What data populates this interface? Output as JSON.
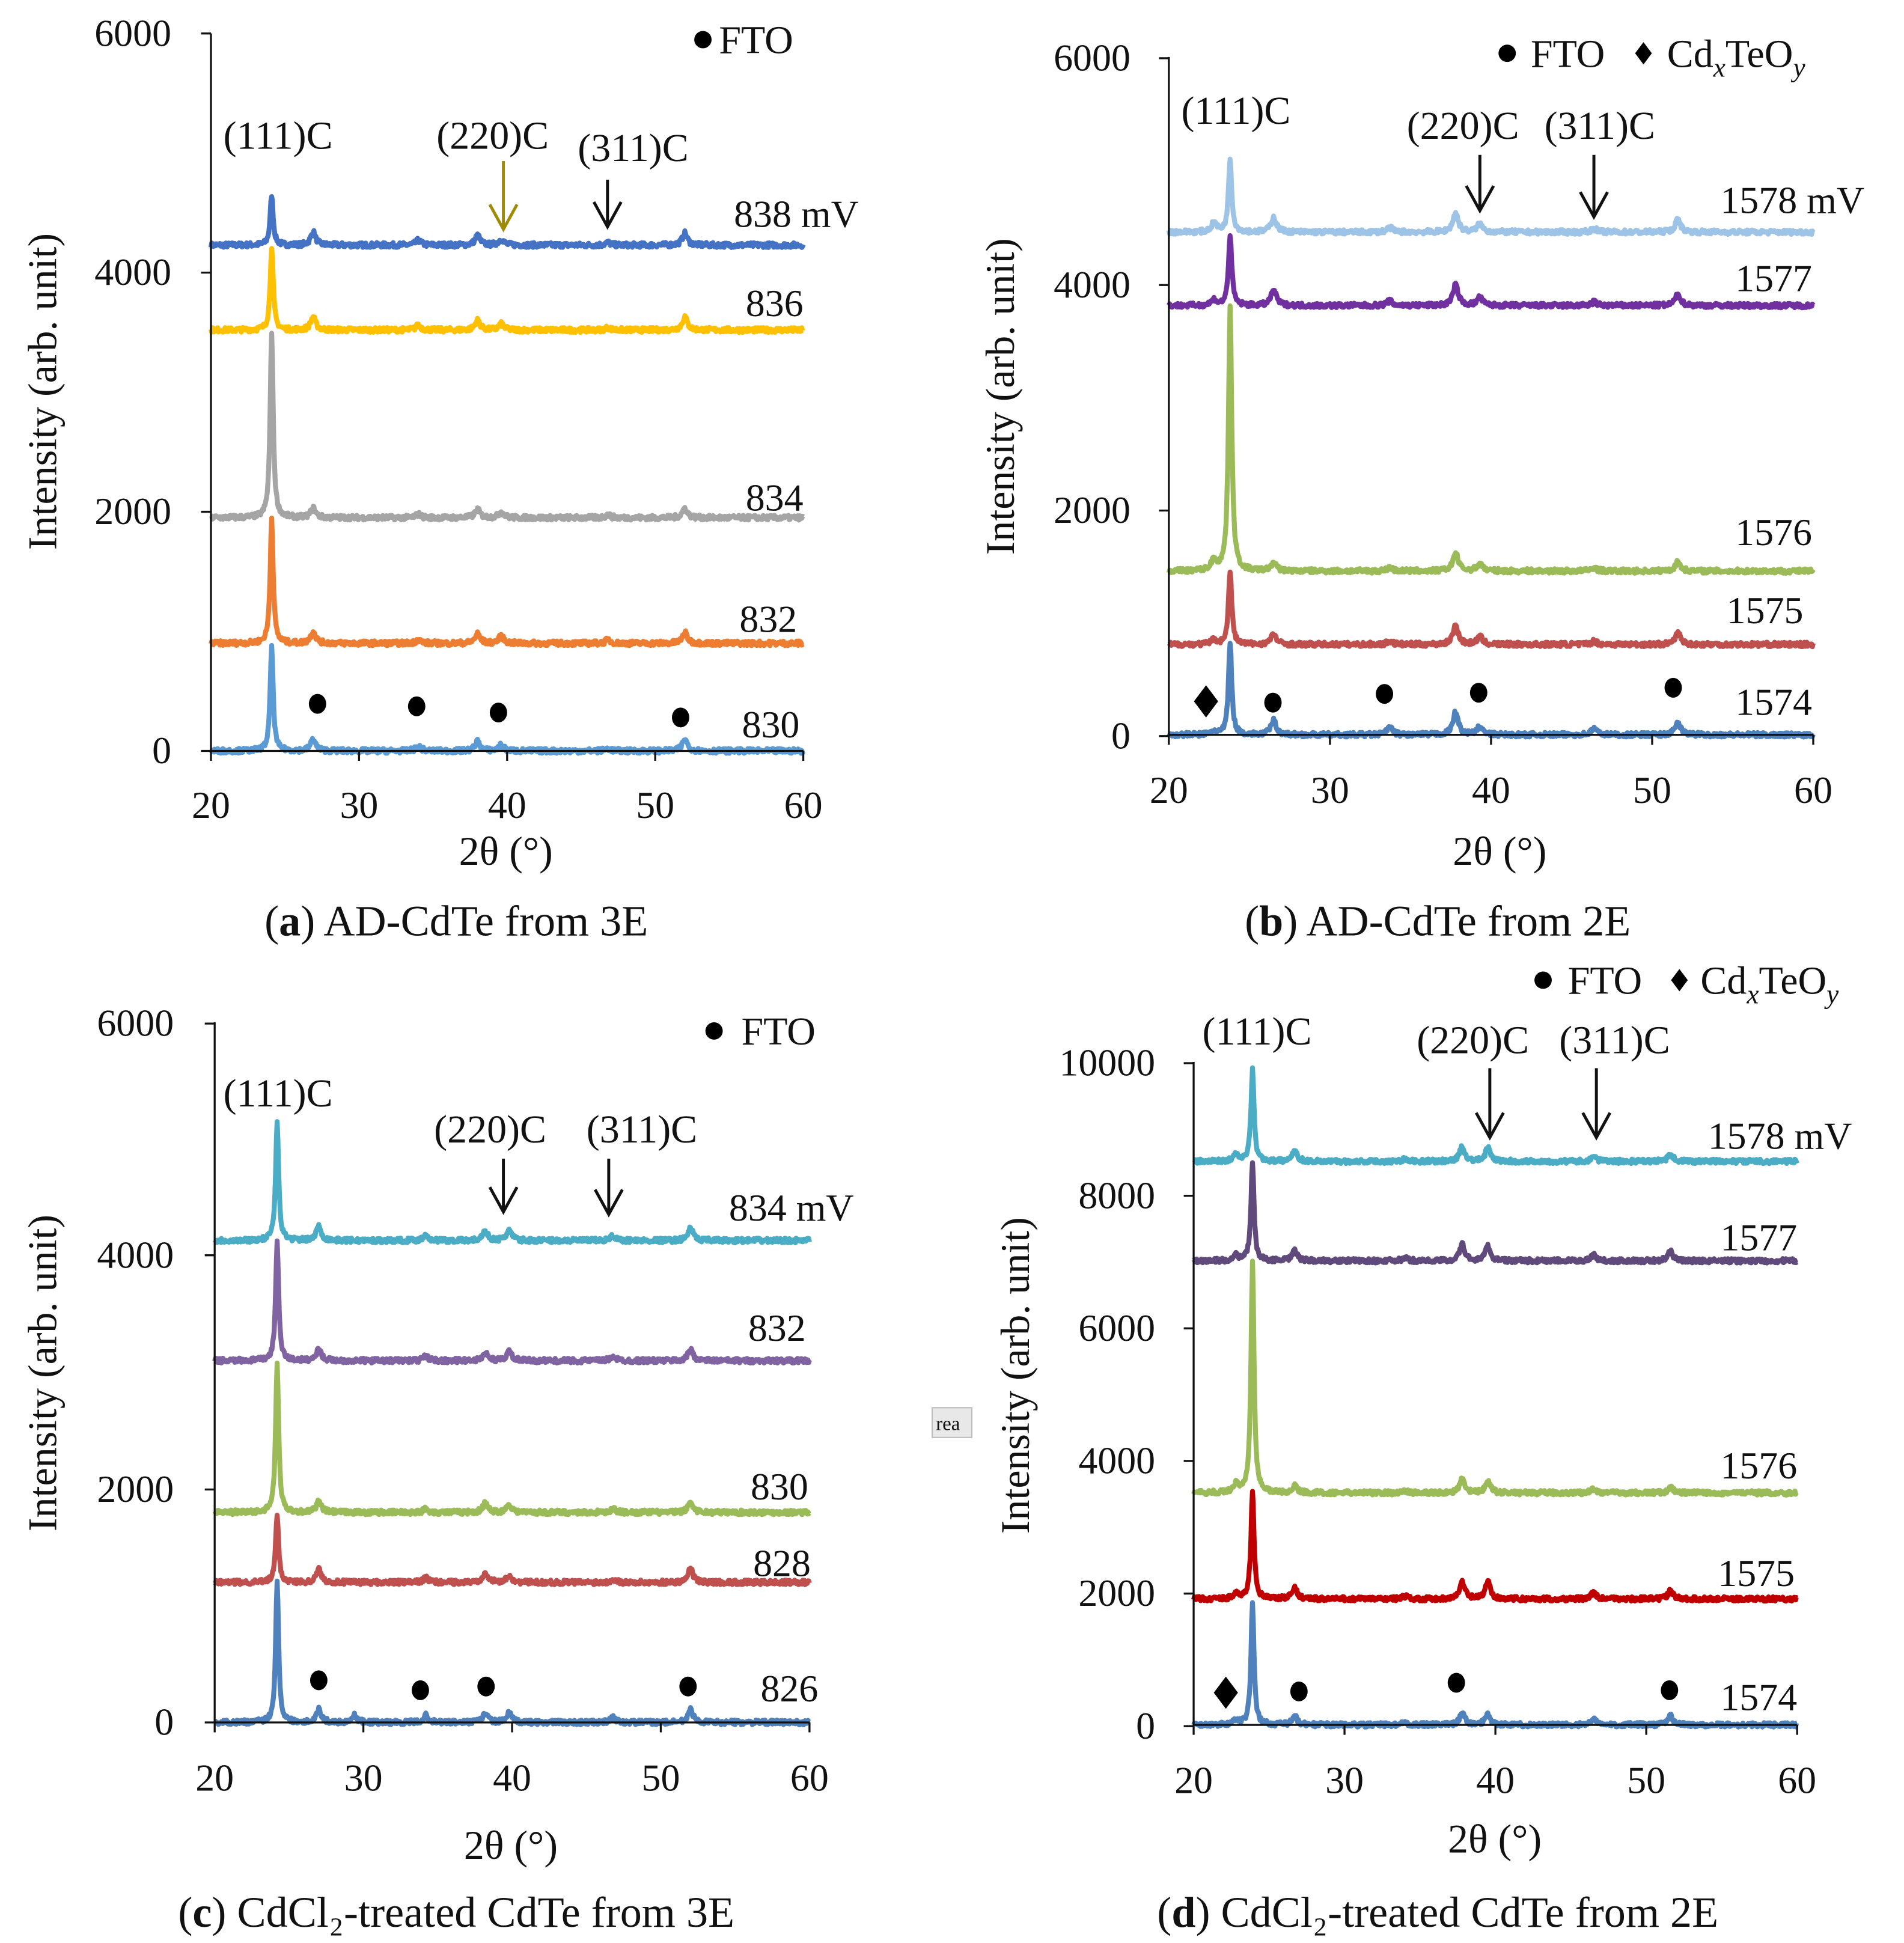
{
  "chart_data": [
    {
      "type": "line",
      "panel": "a",
      "caption": {
        "letter": "a",
        "text": " AD-CdTe from 3E"
      },
      "xlabel": "2θ (°)",
      "ylabel": "Intensity (arb. unit)",
      "xlim": [
        20,
        60
      ],
      "ylim": [
        0,
        6000
      ],
      "xticks": [
        "20",
        "30",
        "40",
        "50",
        "60"
      ],
      "yticks": [
        "6000",
        "4000",
        "2000",
        "0"
      ],
      "legend": [
        {
          "symbol": "circle",
          "label": "FTO"
        }
      ],
      "annotations": [
        "(111)C",
        "(220)C",
        "(311)C"
      ],
      "arrow_colors": [
        "#a08a00",
        "#111111"
      ],
      "peak_positions_2theta": [
        24.1,
        26.9,
        34.0,
        38.0,
        39.6,
        46.8,
        52.0
      ],
      "series": [
        {
          "name": "838 mV",
          "color": "#4472c4",
          "baseline": 4230,
          "peak_heights": [
            420,
            110,
            40,
            80,
            50,
            20,
            100
          ]
        },
        {
          "name": "836",
          "color": "#ffc000",
          "baseline": 3520,
          "peak_heights": [
            700,
            110,
            40,
            80,
            50,
            20,
            110
          ]
        },
        {
          "name": "834",
          "color": "#a5a5a5",
          "baseline": 1950,
          "peak_heights": [
            1560,
            80,
            30,
            70,
            50,
            25,
            80
          ]
        },
        {
          "name": "832",
          "color": "#ed7d31",
          "baseline": 900,
          "peak_heights": [
            1050,
            100,
            30,
            80,
            60,
            30,
            90
          ]
        },
        {
          "name": "830",
          "color": "#5b9bd5",
          "baseline": 0,
          "peak_heights": [
            880,
            100,
            40,
            80,
            50,
            20,
            100
          ]
        }
      ]
    },
    {
      "type": "line",
      "panel": "b",
      "caption": {
        "letter": "b",
        "text": " AD-CdTe from 2E"
      },
      "xlabel": "2θ (°)",
      "ylabel": "Intensity (arb. unit)",
      "xlim": [
        20,
        60
      ],
      "ylim": [
        0,
        6000
      ],
      "xticks": [
        "20",
        "30",
        "40",
        "50",
        "60"
      ],
      "yticks": [
        "6000",
        "4000",
        "2000",
        "0"
      ],
      "legend": [
        {
          "symbol": "circle",
          "label": "FTO"
        },
        {
          "symbol": "diamond",
          "label": "CdxTeOy",
          "parts": [
            [
              "Cd",
              ""
            ],
            [
              "x",
              "sub"
            ],
            [
              "TeO",
              ""
            ],
            [
              "y",
              "sub"
            ]
          ]
        }
      ],
      "annotations": [
        "(111)C",
        "(220)C",
        "(311)C"
      ],
      "arrow_colors": [
        "#111111",
        "#111111"
      ],
      "peak_positions_2theta": [
        22.8,
        23.8,
        26.5,
        33.7,
        37.8,
        39.3,
        46.4,
        51.6
      ],
      "series": [
        {
          "name": "1578 mV",
          "color": "#9dc3e6",
          "baseline": 4450,
          "peak_heights": [
            80,
            650,
            130,
            40,
            170,
            70,
            30,
            110
          ]
        },
        {
          "name": "1577",
          "color": "#7030a0",
          "baseline": 3800,
          "peak_heights": [
            50,
            630,
            140,
            40,
            180,
            70,
            30,
            100
          ]
        },
        {
          "name": "1576",
          "color": "#9bbb59",
          "baseline": 1450,
          "peak_heights": [
            90,
            2350,
            70,
            30,
            160,
            70,
            30,
            80
          ]
        },
        {
          "name": "1575",
          "color": "#c0504d",
          "baseline": 800,
          "peak_heights": [
            40,
            650,
            90,
            30,
            170,
            70,
            30,
            100
          ]
        },
        {
          "name": "1574",
          "color": "#4f81bd",
          "baseline": 0,
          "peak_heights": [
            30,
            820,
            130,
            70,
            200,
            70,
            60,
            110
          ]
        }
      ]
    },
    {
      "type": "line",
      "panel": "c",
      "caption": {
        "letter": "c",
        "text": " CdCl₂-treated CdTe from 3E"
      },
      "xlabel": "2θ (°)",
      "ylabel": "Intensity (arb. unit)",
      "xlim": [
        20,
        60
      ],
      "ylim": [
        0,
        6000
      ],
      "xticks": [
        "20",
        "30",
        "40",
        "50",
        "60"
      ],
      "yticks": [
        "6000",
        "4000",
        "2000",
        "0"
      ],
      "legend": [
        {
          "symbol": "circle",
          "label": "FTO"
        }
      ],
      "annotations": [
        "(111)C",
        "(220)C",
        "(311)C"
      ],
      "arrow_colors": [
        "#111111",
        "#111111"
      ],
      "peak_positions_2theta": [
        24.2,
        27.0,
        29.4,
        34.2,
        38.2,
        39.8,
        46.8,
        52.0
      ],
      "series": [
        {
          "name": "834 mV",
          "color": "#4bacc6",
          "baseline": 4130,
          "peak_heights": [
            1030,
            120,
            0,
            50,
            80,
            90,
            40,
            110
          ]
        },
        {
          "name": "832",
          "color": "#8064a2",
          "baseline": 3100,
          "peak_heights": [
            1020,
            100,
            0,
            40,
            70,
            80,
            40,
            100
          ]
        },
        {
          "name": "830",
          "color": "#9bbb59",
          "baseline": 1800,
          "peak_heights": [
            1280,
            90,
            0,
            30,
            80,
            70,
            30,
            90
          ]
        },
        {
          "name": "828",
          "color": "#c0504d",
          "baseline": 1200,
          "peak_heights": [
            580,
            110,
            0,
            40,
            90,
            60,
            30,
            120
          ]
        },
        {
          "name": "826",
          "color": "#4f81bd",
          "baseline": 0,
          "peak_heights": [
            1200,
            110,
            60,
            60,
            80,
            80,
            40,
            110
          ]
        }
      ]
    },
    {
      "type": "line",
      "panel": "d",
      "caption": {
        "letter": "d",
        "text": " CdCl₂-treated CdTe from 2E"
      },
      "xlabel": "2θ (°)",
      "ylabel": "Intensity (arb. unit)",
      "xlim": [
        20,
        60
      ],
      "ylim": [
        0,
        10000
      ],
      "xticks": [
        "20",
        "30",
        "40",
        "50",
        "60"
      ],
      "yticks": [
        "10000",
        "8000",
        "6000",
        "4000",
        "2000",
        "0"
      ],
      "legend": [
        {
          "symbol": "circle",
          "label": "FTO"
        },
        {
          "symbol": "diamond",
          "label": "CdxTeOy",
          "parts": [
            [
              "Cd",
              ""
            ],
            [
              "x",
              "sub"
            ],
            [
              "TeO",
              ""
            ],
            [
              "y",
              "sub"
            ]
          ]
        }
      ],
      "annotations": [
        "(111)C",
        "(220)C",
        "(311)C"
      ],
      "arrow_colors": [
        "#111111",
        "#111111"
      ],
      "peak_positions_2theta": [
        22.8,
        23.9,
        26.7,
        34.0,
        37.8,
        39.5,
        46.5,
        51.6
      ],
      "series": [
        {
          "name": "1578 mV",
          "color": "#4bacc6",
          "baseline": 8500,
          "peak_heights": [
            100,
            1400,
            170,
            40,
            230,
            200,
            80,
            120
          ]
        },
        {
          "name": "1577",
          "color": "#604a7b",
          "baseline": 7000,
          "peak_heights": [
            80,
            1500,
            150,
            40,
            250,
            220,
            90,
            140
          ]
        },
        {
          "name": "1576",
          "color": "#9bbb59",
          "baseline": 3500,
          "peak_heights": [
            130,
            3500,
            100,
            30,
            200,
            170,
            60,
            80
          ]
        },
        {
          "name": "1575",
          "color": "#c00000",
          "baseline": 1900,
          "peak_heights": [
            80,
            1650,
            170,
            40,
            260,
            260,
            90,
            120
          ]
        },
        {
          "name": "1574",
          "color": "#4f81bd",
          "baseline": 0,
          "peak_heights": [
            80,
            1850,
            130,
            40,
            190,
            170,
            90,
            140
          ]
        }
      ]
    }
  ],
  "overlay_tooltip": "rea"
}
